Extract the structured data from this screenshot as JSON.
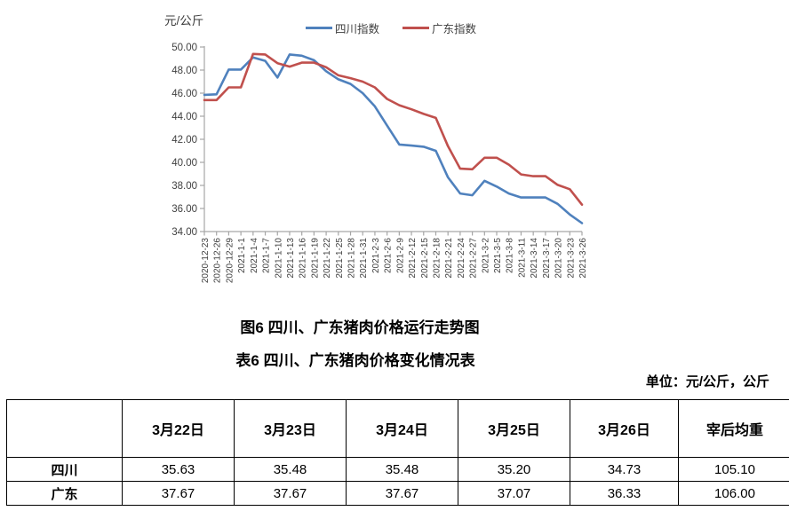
{
  "captions": {
    "figure": "图6 四川、广东猪肉价格运行走势图",
    "table": "表6 四川、广东猪肉价格变化情况表",
    "unit": "单位：元/公斤，公斤"
  },
  "chart_data": {
    "type": "line",
    "title": "",
    "y_axis_title": "元/公斤",
    "xlabel": "",
    "ylabel": "元/公斤",
    "ylim": [
      34,
      50
    ],
    "ytick_step": 2,
    "grid": false,
    "legend_position": "top",
    "axis_color": "#A6A6A6",
    "tick_label_color": "#404040",
    "categories": [
      "2020-12-23",
      "2020-12-26",
      "2020-12-29",
      "2021-1-1",
      "2021-1-4",
      "2021-1-7",
      "2021-1-10",
      "2021-1-13",
      "2021-1-16",
      "2021-1-19",
      "2021-1-22",
      "2021-1-25",
      "2021-1-28",
      "2021-1-31",
      "2021-2-3",
      "2021-2-6",
      "2021-2-9",
      "2021-2-12",
      "2021-2-15",
      "2021-2-18",
      "2021-2-21",
      "2021-2-24",
      "2021-2-27",
      "2021-3-2",
      "2021-3-5",
      "2021-3-8",
      "2021-3-11",
      "2021-3-14",
      "2021-3-17",
      "2021-3-20",
      "2021-3-23",
      "2021-3-26"
    ],
    "series": [
      {
        "name": "四川指数",
        "color": "#4F81BD",
        "values": [
          45.85,
          45.9,
          48.05,
          48.05,
          49.1,
          48.8,
          47.35,
          49.35,
          49.25,
          48.85,
          47.9,
          47.2,
          46.8,
          46.0,
          44.85,
          43.2,
          41.55,
          41.45,
          41.35,
          41.0,
          38.7,
          37.3,
          37.15,
          38.4,
          37.9,
          37.3,
          36.95,
          36.95,
          36.95,
          36.4,
          35.48,
          34.73
        ]
      },
      {
        "name": "广东指数",
        "color": "#C0504D",
        "values": [
          45.4,
          45.4,
          46.5,
          46.5,
          49.4,
          49.35,
          48.6,
          48.3,
          48.65,
          48.65,
          48.25,
          47.55,
          47.3,
          47.0,
          46.5,
          45.5,
          44.95,
          44.6,
          44.2,
          43.85,
          41.4,
          39.45,
          39.4,
          40.4,
          40.4,
          39.8,
          38.95,
          38.8,
          38.8,
          38.05,
          37.67,
          36.33
        ]
      }
    ]
  },
  "table": {
    "header": [
      "",
      "3月22日",
      "3月23日",
      "3月24日",
      "3月25日",
      "3月26日",
      "宰后均重"
    ],
    "rows": [
      {
        "label": "四川",
        "values": [
          "35.63",
          "35.48",
          "35.48",
          "35.20",
          "34.73",
          "105.10"
        ]
      },
      {
        "label": "广东",
        "values": [
          "37.67",
          "37.67",
          "37.67",
          "37.07",
          "36.33",
          "106.00"
        ]
      }
    ]
  }
}
